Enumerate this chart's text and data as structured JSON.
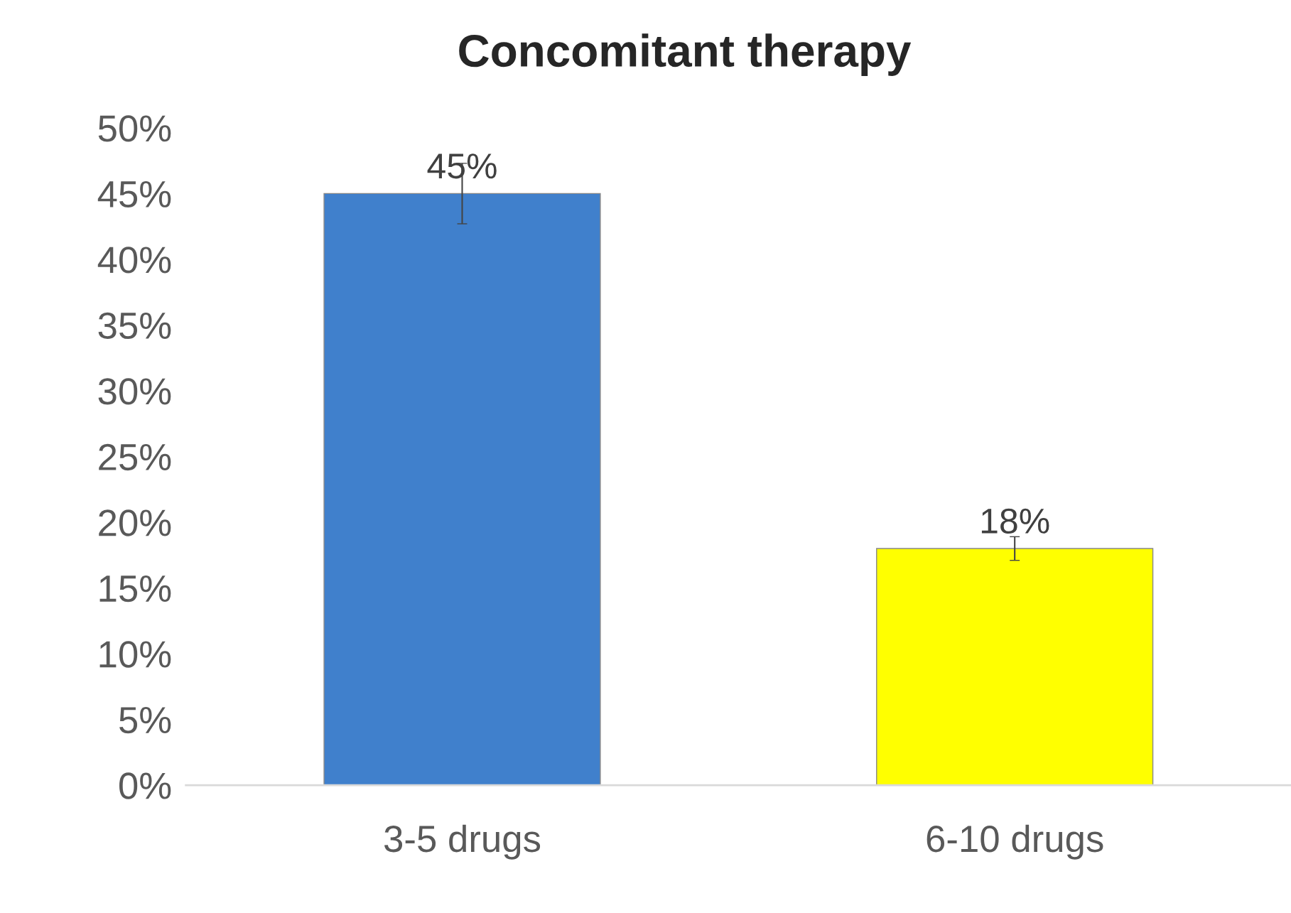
{
  "chart_data": {
    "type": "bar",
    "title": "Concomitant therapy",
    "categories": [
      "3-5 drugs",
      "6-10 drugs"
    ],
    "values": [
      45,
      18
    ],
    "colors": [
      "#4080cc",
      "#ffff00"
    ],
    "errors": [
      [
        42.7,
        47.3
      ],
      [
        17.1,
        18.9
      ]
    ],
    "value_labels": [
      "45%",
      "18%"
    ],
    "ylim": [
      0,
      50
    ],
    "yticks": [
      {
        "value": 0,
        "label": "0%"
      },
      {
        "value": 5,
        "label": "5%"
      },
      {
        "value": 10,
        "label": "10%"
      },
      {
        "value": 15,
        "label": "15%"
      },
      {
        "value": 20,
        "label": "20%"
      },
      {
        "value": 25,
        "label": "25%"
      },
      {
        "value": 30,
        "label": "30%"
      },
      {
        "value": 35,
        "label": "35%"
      },
      {
        "value": 40,
        "label": "40%"
      },
      {
        "value": 45,
        "label": "45%"
      },
      {
        "value": 50,
        "label": "50%"
      }
    ],
    "grid": false,
    "legend": false
  }
}
